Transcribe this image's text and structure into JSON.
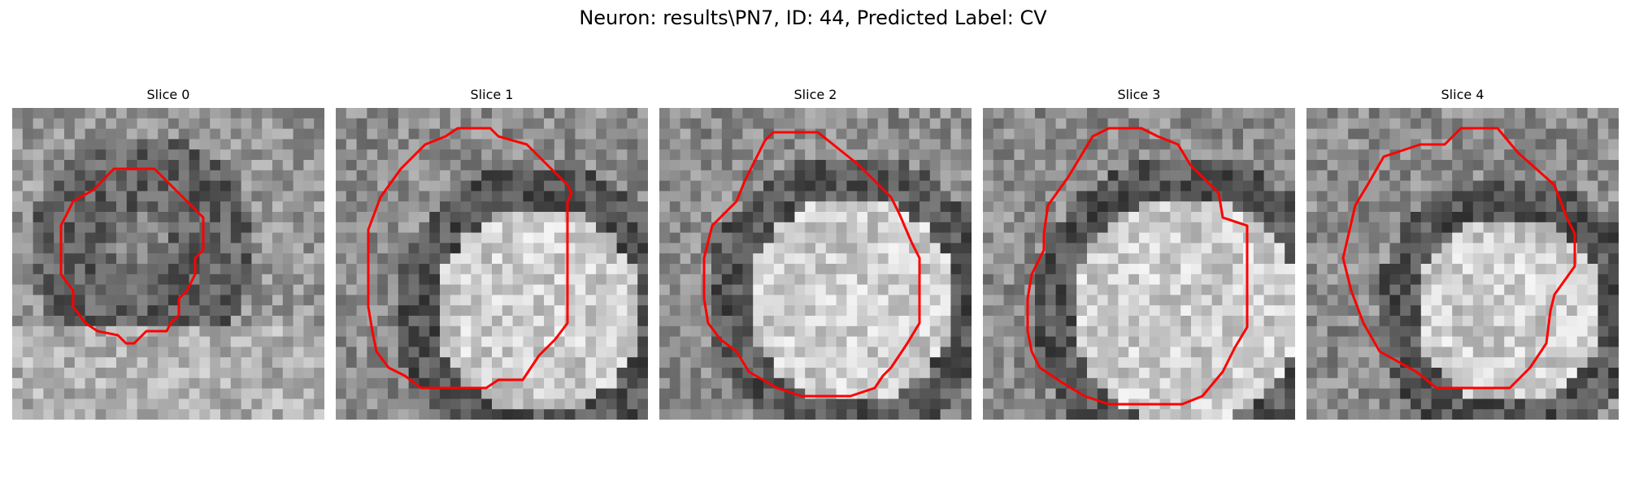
{
  "figure": {
    "title": "Neuron: results\\PN7, ID: 44, Predicted Label: CV"
  },
  "slices": [
    {
      "title": "Slice 0",
      "contour_color": "#ff0000"
    },
    {
      "title": "Slice 1",
      "contour_color": "#ff0000"
    },
    {
      "title": "Slice 2",
      "contour_color": "#ff0000"
    },
    {
      "title": "Slice 3",
      "contour_color": "#ff0000"
    },
    {
      "title": "Slice 4",
      "contour_color": "#ff0000"
    }
  ]
}
